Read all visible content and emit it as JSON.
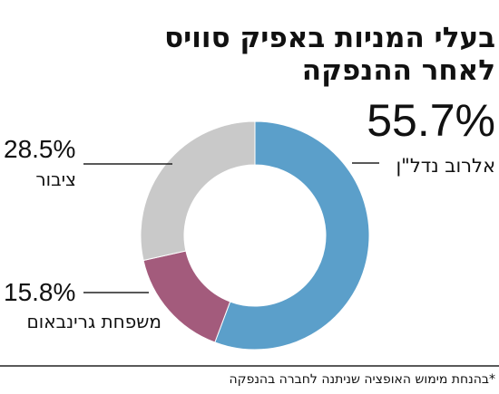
{
  "chart_data": {
    "type": "donut",
    "title": [
      "בעלי המניות באפיק סוויס",
      "לאחר ההנפקה"
    ],
    "categories": [
      "אלרוב נדל\"ן",
      "משפחת גרינבאום",
      "ציבור"
    ],
    "values": [
      55.7,
      15.8,
      28.5
    ],
    "value_labels": [
      "55.7%",
      "15.8%",
      "28.5%"
    ],
    "colors": [
      "#5b9fca",
      "#a35b7c",
      "#c9c9c9"
    ],
    "footnote": "*בהנחת מימוש האופציה שניתנה לחברה בהנפקה"
  }
}
